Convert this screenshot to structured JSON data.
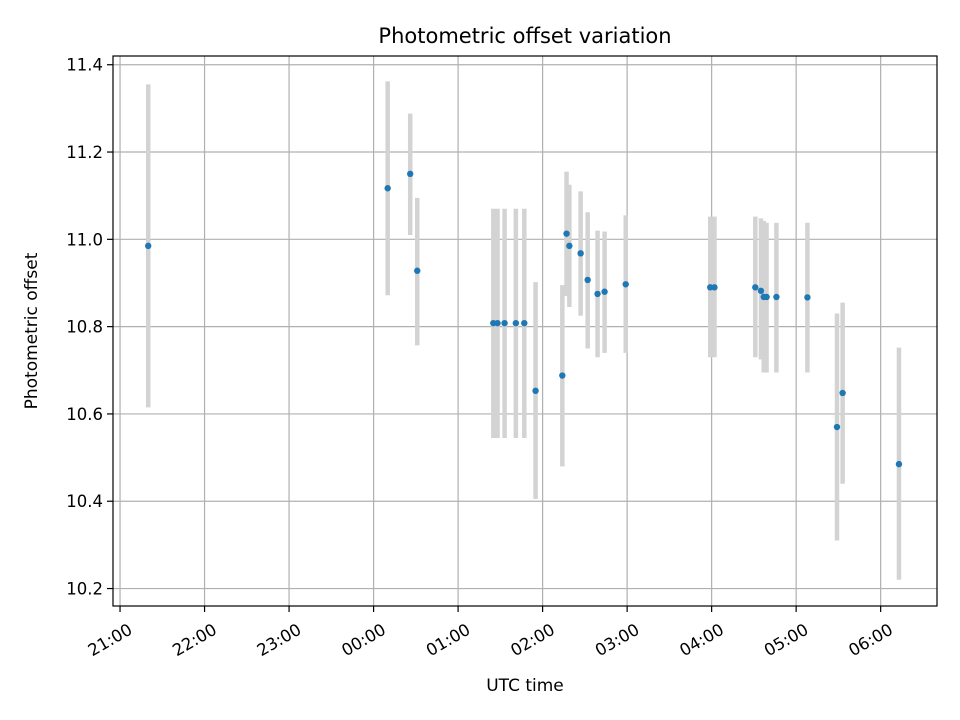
{
  "chart_data": {
    "type": "scatter",
    "title": "Photometric offset variation",
    "xlabel": "UTC time",
    "ylabel": "Photometric offset",
    "x_tick_labels": [
      "21:00",
      "22:00",
      "23:00",
      "00:00",
      "01:00",
      "02:00",
      "03:00",
      "04:00",
      "05:00",
      "06:00"
    ],
    "y_tick_labels": [
      "10.2",
      "10.4",
      "10.6",
      "10.8",
      "11.0",
      "11.2",
      "11.4"
    ],
    "y_ticks": [
      10.2,
      10.4,
      10.6,
      10.8,
      11.0,
      11.2,
      11.4
    ],
    "xlim": [
      "20:55",
      "06:40"
    ],
    "ylim": [
      10.16,
      11.42
    ],
    "grid": true,
    "marker_color": "#1f77b4",
    "errorbar_color": "#d3d3d3",
    "points": [
      {
        "t": "21:20",
        "y": 10.985,
        "lo": 10.615,
        "hi": 11.355
      },
      {
        "t": "00:10",
        "y": 11.117,
        "lo": 10.872,
        "hi": 11.362
      },
      {
        "t": "00:26",
        "y": 11.15,
        "lo": 11.01,
        "hi": 11.288
      },
      {
        "t": "00:31",
        "y": 10.928,
        "lo": 10.757,
        "hi": 11.095
      },
      {
        "t": "01:25",
        "y": 10.808,
        "lo": 10.545,
        "hi": 11.07
      },
      {
        "t": "01:28",
        "y": 10.808,
        "lo": 10.545,
        "hi": 11.07
      },
      {
        "t": "01:33",
        "y": 10.808,
        "lo": 10.545,
        "hi": 11.07
      },
      {
        "t": "01:41",
        "y": 10.808,
        "lo": 10.545,
        "hi": 11.07
      },
      {
        "t": "01:47",
        "y": 10.808,
        "lo": 10.545,
        "hi": 11.07
      },
      {
        "t": "01:55",
        "y": 10.653,
        "lo": 10.405,
        "hi": 10.902
      },
      {
        "t": "02:14",
        "y": 10.688,
        "lo": 10.48,
        "hi": 10.895
      },
      {
        "t": "02:17",
        "y": 11.013,
        "lo": 10.87,
        "hi": 11.155
      },
      {
        "t": "02:19",
        "y": 10.985,
        "lo": 10.845,
        "hi": 11.125
      },
      {
        "t": "02:27",
        "y": 10.968,
        "lo": 10.825,
        "hi": 11.11
      },
      {
        "t": "02:32",
        "y": 10.907,
        "lo": 10.75,
        "hi": 11.062
      },
      {
        "t": "02:39",
        "y": 10.875,
        "lo": 10.73,
        "hi": 11.02
      },
      {
        "t": "02:44",
        "y": 10.88,
        "lo": 10.74,
        "hi": 11.018
      },
      {
        "t": "02:59",
        "y": 10.897,
        "lo": 10.74,
        "hi": 11.055
      },
      {
        "t": "03:59",
        "y": 10.89,
        "lo": 10.73,
        "hi": 11.052
      },
      {
        "t": "04:02",
        "y": 10.89,
        "lo": 10.73,
        "hi": 11.052
      },
      {
        "t": "04:31",
        "y": 10.89,
        "lo": 10.73,
        "hi": 11.052
      },
      {
        "t": "04:35",
        "y": 10.882,
        "lo": 10.725,
        "hi": 11.048
      },
      {
        "t": "04:37",
        "y": 10.868,
        "lo": 10.695,
        "hi": 11.042
      },
      {
        "t": "04:39",
        "y": 10.868,
        "lo": 10.695,
        "hi": 11.038
      },
      {
        "t": "04:46",
        "y": 10.868,
        "lo": 10.695,
        "hi": 11.038
      },
      {
        "t": "05:08",
        "y": 10.867,
        "lo": 10.695,
        "hi": 11.038
      },
      {
        "t": "05:29",
        "y": 10.57,
        "lo": 10.31,
        "hi": 10.83
      },
      {
        "t": "05:33",
        "y": 10.648,
        "lo": 10.44,
        "hi": 10.855
      },
      {
        "t": "06:13",
        "y": 10.485,
        "lo": 10.22,
        "hi": 10.752
      }
    ]
  }
}
